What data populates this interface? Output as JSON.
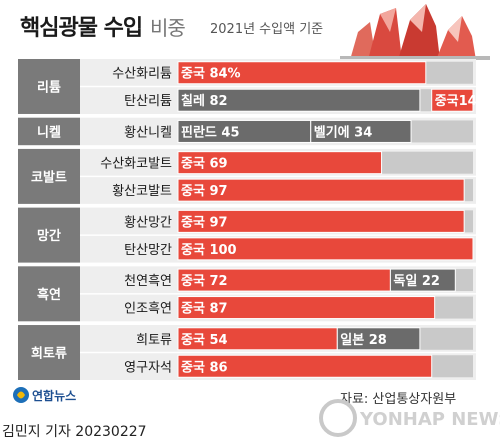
{
  "header": {
    "title": "핵심광물 수입",
    "title_light": "비중",
    "note": "2021년 수입액 기준"
  },
  "chart_data": {
    "type": "bar",
    "stacked": true,
    "unit": "%",
    "xlim": [
      0,
      100
    ],
    "groups": [
      "리튬",
      "니켈",
      "코발트",
      "망간",
      "흑연",
      "희토류"
    ],
    "rows": [
      {
        "group": "리튬",
        "label": "수산화리튬",
        "segments": [
          {
            "country": "중국",
            "value": 84,
            "label": "중국 84%",
            "color": "#e8483b"
          }
        ]
      },
      {
        "group": "리튬",
        "label": "탄산리튬",
        "segments": [
          {
            "country": "칠레",
            "value": 82,
            "label": "칠레 82",
            "color": "#6b6b6b"
          },
          {
            "country": "중국",
            "value": 14,
            "label": "중국14",
            "color": "#e8483b"
          }
        ]
      },
      {
        "group": "니켈",
        "label": "황산니켈",
        "segments": [
          {
            "country": "핀란드",
            "value": 45,
            "label": "핀란드 45",
            "color": "#6b6b6b"
          },
          {
            "country": "벨기에",
            "value": 34,
            "label": "벨기에 34",
            "color": "#6b6b6b"
          }
        ]
      },
      {
        "group": "코발트",
        "label": "수산화코발트",
        "segments": [
          {
            "country": "중국",
            "value": 69,
            "label": "중국 69",
            "color": "#e8483b"
          }
        ]
      },
      {
        "group": "코발트",
        "label": "황산코발트",
        "segments": [
          {
            "country": "중국",
            "value": 97,
            "label": "중국 97",
            "color": "#e8483b"
          }
        ]
      },
      {
        "group": "망간",
        "label": "황산망간",
        "segments": [
          {
            "country": "중국",
            "value": 97,
            "label": "중국 97",
            "color": "#e8483b"
          }
        ]
      },
      {
        "group": "망간",
        "label": "탄산망간",
        "segments": [
          {
            "country": "중국",
            "value": 100,
            "label": "중국 100",
            "color": "#e8483b"
          }
        ]
      },
      {
        "group": "흑연",
        "label": "천연흑연",
        "segments": [
          {
            "country": "중국",
            "value": 72,
            "label": "중국 72",
            "color": "#e8483b"
          },
          {
            "country": "독일",
            "value": 22,
            "label": "독일 22",
            "color": "#6b6b6b"
          }
        ]
      },
      {
        "group": "흑연",
        "label": "인조흑연",
        "segments": [
          {
            "country": "중국",
            "value": 87,
            "label": "중국 87",
            "color": "#e8483b"
          }
        ]
      },
      {
        "group": "희토류",
        "label": "희토류",
        "segments": [
          {
            "country": "중국",
            "value": 54,
            "label": "중국 54",
            "color": "#e8483b"
          },
          {
            "country": "일본",
            "value": 28,
            "label": "일본 28",
            "color": "#6b6b6b"
          }
        ]
      },
      {
        "group": "희토류",
        "label": "영구자석",
        "segments": [
          {
            "country": "중국",
            "value": 86,
            "label": "중국 86",
            "color": "#e8483b"
          }
        ]
      }
    ],
    "colors": {
      "china": "#e8483b",
      "other": "#6b6b6b",
      "remainder": "#c9c9c9",
      "group_header": "#7a7a7a"
    }
  },
  "footer": {
    "source": "자료: 산업통상자원부",
    "reporter": "김민지 기자  20230227",
    "logo_text": "연합뉴스",
    "watermark": "YONHAP NEWS"
  }
}
